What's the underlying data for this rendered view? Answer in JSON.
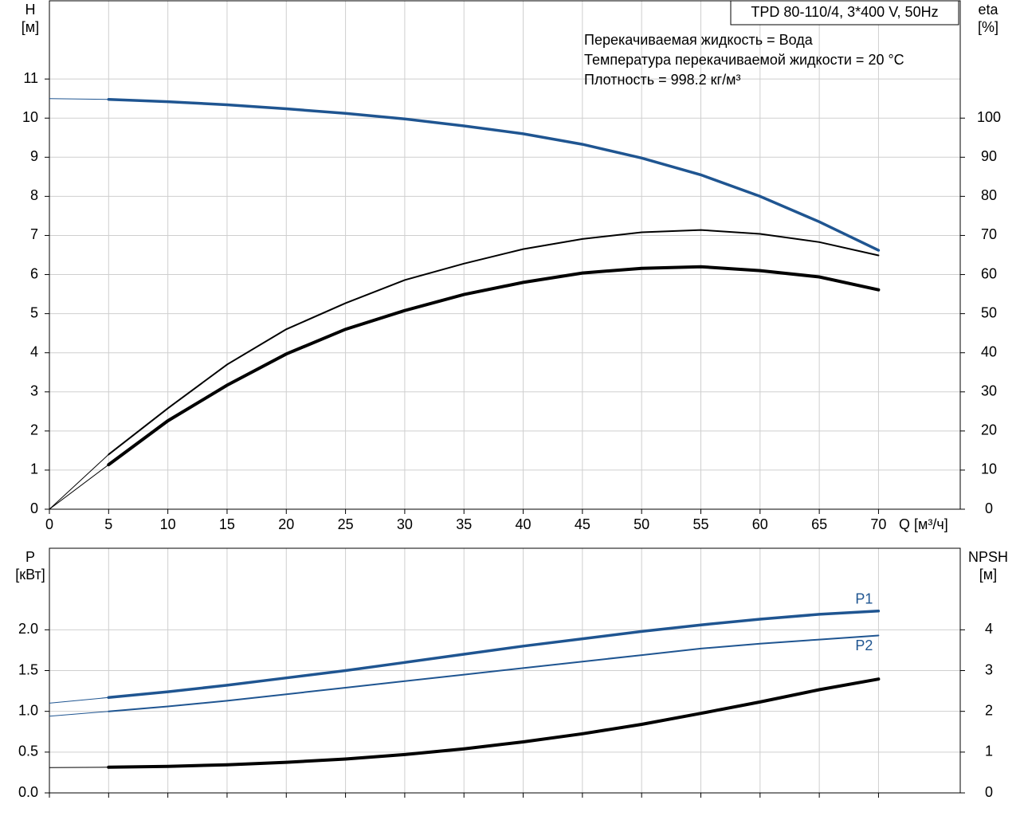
{
  "chart_data": [
    {
      "type": "line",
      "title": "TPD 80-110/4, 3*400 V, 50Hz",
      "annotations": [
        "Перекачиваемая жидкость = Вода",
        "Температура перекачиваемой жидкости = 20 °C",
        "Плотность = 998.2 кг/м³"
      ],
      "x_label": "Q [м³/ч]",
      "y_label": "H",
      "y_unit": "[м]",
      "y2_label": "eta",
      "y2_unit": "[%]",
      "x": [
        0,
        5,
        10,
        15,
        20,
        25,
        30,
        35,
        40,
        45,
        50,
        55,
        60,
        65,
        70
      ],
      "series": [
        {
          "color": "#1f5591",
          "values": [
            10.5,
            10.48,
            10.42,
            10.34,
            10.24,
            10.12,
            9.98,
            9.8,
            9.6,
            9.33,
            8.98,
            8.55,
            8.0,
            7.35,
            6.62
          ]
        },
        {
          "color": "#000000",
          "axis": "y2",
          "values": [
            0,
            14,
            25.8,
            37,
            46,
            52.7,
            58.6,
            62.8,
            66.5,
            69.1,
            70.8,
            71.4,
            70.4,
            68.3,
            64.9
          ]
        },
        {
          "color": "#000000",
          "axis": "y2",
          "values": [
            0,
            11.4,
            22.6,
            31.7,
            39.7,
            46,
            50.8,
            54.9,
            58,
            60.4,
            61.6,
            62,
            61,
            59.4,
            56.1
          ]
        }
      ],
      "xlim": [
        0,
        76.9
      ],
      "xticks": [
        0,
        5,
        10,
        15,
        20,
        25,
        30,
        35,
        40,
        45,
        50,
        55,
        60,
        65,
        70
      ],
      "ylim": [
        0,
        13
      ],
      "yticks": [
        0,
        1,
        2,
        3,
        4,
        5,
        6,
        7,
        8,
        9,
        10,
        11
      ],
      "y2lim": [
        0,
        130
      ],
      "y2ticks": [
        0,
        10,
        20,
        30,
        40,
        50,
        60,
        70,
        80,
        90,
        100
      ],
      "grid": true
    },
    {
      "type": "line",
      "y_label": "P",
      "y_unit": "[кВт]",
      "y2_label": "NPSH",
      "y2_unit": "[м]",
      "x": [
        0,
        5,
        10,
        15,
        20,
        25,
        30,
        35,
        40,
        45,
        50,
        55,
        60,
        65,
        70
      ],
      "series": [
        {
          "name": "P1",
          "color": "#1f5591",
          "values": [
            1.1,
            1.17,
            1.24,
            1.32,
            1.41,
            1.5,
            1.6,
            1.7,
            1.8,
            1.89,
            1.98,
            2.06,
            2.13,
            2.19,
            2.23
          ]
        },
        {
          "name": "P2",
          "color": "#1f5591",
          "values": [
            0.94,
            1.0,
            1.06,
            1.13,
            1.21,
            1.29,
            1.37,
            1.45,
            1.53,
            1.61,
            1.69,
            1.77,
            1.83,
            1.88,
            1.93
          ]
        },
        {
          "color": "#000000",
          "axis": "y2",
          "values": [
            0.62,
            0.63,
            0.65,
            0.69,
            0.75,
            0.83,
            0.94,
            1.08,
            1.25,
            1.45,
            1.68,
            1.95,
            2.23,
            2.53,
            2.79
          ]
        }
      ],
      "xlim": [
        0,
        76.9
      ],
      "ylim": [
        0,
        3
      ],
      "yticks": [
        {
          "value": 0,
          "label": "0.0"
        },
        {
          "value": 0.5,
          "label": "0.5"
        },
        {
          "value": 1,
          "label": "1.0"
        },
        {
          "value": 1.5,
          "label": "1.5"
        },
        {
          "value": 2,
          "label": "2.0"
        }
      ],
      "y2lim": [
        0,
        6
      ],
      "y2ticks": [
        0,
        1,
        2,
        3,
        4
      ],
      "grid": true
    }
  ]
}
